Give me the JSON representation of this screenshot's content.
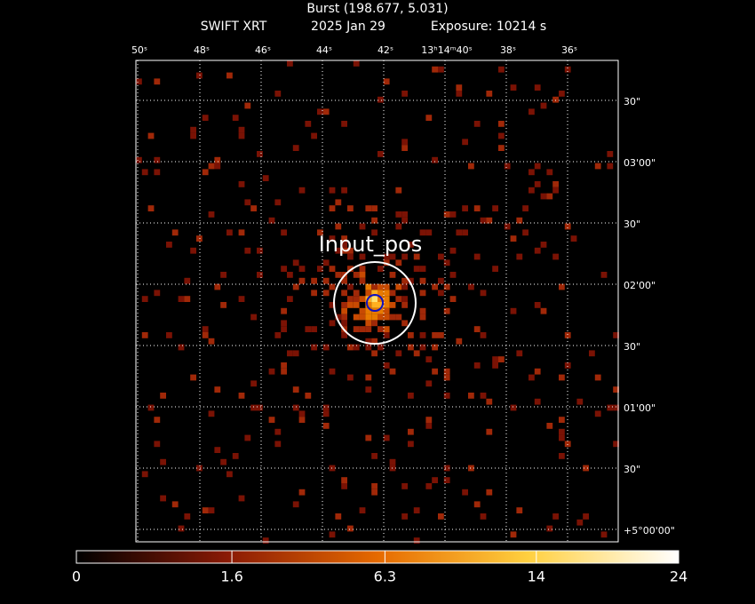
{
  "header": {
    "title": "Burst (198.677, 5.031)",
    "instrument": "SWIFT XRT",
    "date": "2025 Jan 29",
    "exposure": "Exposure: 10214 s"
  },
  "image": {
    "x_tick_labels": [
      "50ˢ",
      "48ˢ",
      "46ˢ",
      "44ˢ",
      "42ˢ",
      "13ʰ14ᵐ40ˢ",
      "38ˢ",
      "36ˢ"
    ],
    "y_tick_labels": [
      "30\"",
      "03'00\"",
      "30\"",
      "02'00\"",
      "30\"",
      "01'00\"",
      "30\"",
      "+5°00'00\""
    ],
    "annotation": "Input_pos"
  },
  "colorbar": {
    "scale": "sqrt",
    "lim": [
      0,
      24
    ],
    "ticks": [
      0,
      1.6,
      6.3,
      14,
      24
    ]
  }
}
